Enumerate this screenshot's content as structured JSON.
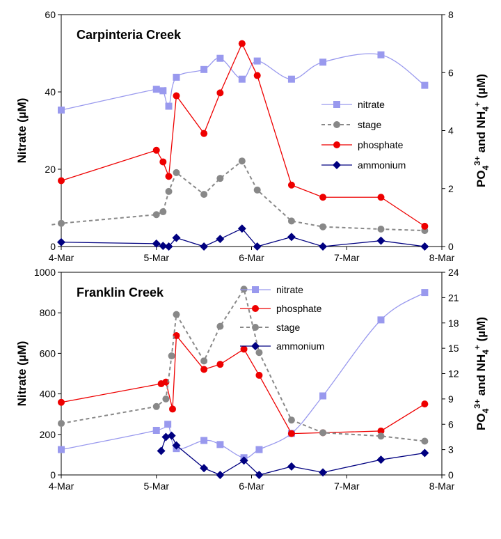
{
  "chart_data": [
    {
      "type": "line",
      "title": "Carpinteria Creek",
      "xlabel": "",
      "ylabel": "Nitrate (µM)",
      "y2label": {
        "prefix": "PO",
        "sub1": "4",
        "sup1": "3+",
        "mid": " and NH",
        "sub2": "4",
        "sup2": "+",
        "suffix": " (µM)"
      },
      "xlim": [
        0,
        4
      ],
      "ylim": [
        0,
        60
      ],
      "y2lim": [
        0,
        8
      ],
      "x_ticks": [
        0,
        1,
        2,
        3,
        4
      ],
      "x_tick_labels": [
        "4-Mar",
        "5-Mar",
        "6-Mar",
        "7-Mar",
        "8-Mar"
      ],
      "y_ticks": [
        0,
        20,
        40,
        60
      ],
      "y_tick_labels": [
        "0",
        "20",
        "40",
        "60"
      ],
      "y2_ticks": [
        0,
        2,
        4,
        6,
        8
      ],
      "y2_tick_labels": [
        "0",
        "2",
        "4",
        "6",
        "8"
      ],
      "legend_position": "center-right",
      "legend": [
        "nitrate",
        "stage",
        "phosphate",
        "ammonium"
      ],
      "series": [
        {
          "name": "nitrate",
          "axis": "left",
          "color": "#9999ee",
          "marker": "square",
          "line": "smooth",
          "x": [
            0,
            1.0,
            1.07,
            1.13,
            1.21,
            1.5,
            1.67,
            1.9,
            2.06,
            2.42,
            2.75,
            3.36,
            3.82
          ],
          "y": [
            35.3,
            40.7,
            40.3,
            36.3,
            43.8,
            45.8,
            48.7,
            43.3,
            48.0,
            43.3,
            47.7,
            49.6,
            41.7
          ]
        },
        {
          "name": "stage",
          "axis": "right",
          "color": "#888888",
          "marker": "circle",
          "line": "dashed",
          "x": [
            -0.1,
            0,
            1.0,
            1.07,
            1.13,
            1.21,
            1.5,
            1.67,
            1.9,
            2.06,
            2.42,
            2.75,
            3.36,
            3.82
          ],
          "y": [
            0.75,
            0.8,
            1.1,
            1.2,
            1.9,
            2.55,
            1.8,
            2.35,
            2.95,
            1.95,
            0.88,
            0.68,
            0.6,
            0.55
          ]
        },
        {
          "name": "phosphate",
          "axis": "right",
          "color": "#ee0000",
          "marker": "circle",
          "line": "solid",
          "x": [
            0,
            1.0,
            1.07,
            1.13,
            1.21,
            1.5,
            1.67,
            1.9,
            2.06,
            2.42,
            2.75,
            3.36,
            3.82
          ],
          "y": [
            2.27,
            3.32,
            2.92,
            2.42,
            5.2,
            3.9,
            5.3,
            7.0,
            5.9,
            2.12,
            1.7,
            1.7,
            0.7
          ]
        },
        {
          "name": "ammonium",
          "axis": "right",
          "color": "#000080",
          "marker": "diamond",
          "line": "solid",
          "x": [
            0,
            1.0,
            1.07,
            1.13,
            1.21,
            1.5,
            1.67,
            1.9,
            2.06,
            2.42,
            2.75,
            3.36,
            3.82
          ],
          "y": [
            0.15,
            0.1,
            0.02,
            0.0,
            0.3,
            0.0,
            0.26,
            0.62,
            0.0,
            0.33,
            0.0,
            0.2,
            0.0
          ]
        }
      ]
    },
    {
      "type": "line",
      "title": "Franklin Creek",
      "xlabel": "",
      "ylabel": "Nitrate (µM)",
      "y2label": {
        "prefix": "PO",
        "sub1": "4",
        "sup1": "3+",
        "mid": " and NH",
        "sub2": "4",
        "sup2": "+",
        "suffix": " (µM)"
      },
      "xlim": [
        0,
        4
      ],
      "ylim": [
        0,
        1000
      ],
      "y2lim": [
        0,
        24
      ],
      "x_ticks": [
        0,
        1,
        2,
        3,
        4
      ],
      "x_tick_labels": [
        "4-Mar",
        "5-Mar",
        "6-Mar",
        "7-Mar",
        "8-Mar"
      ],
      "y_ticks": [
        0,
        200,
        400,
        600,
        800,
        1000
      ],
      "y_tick_labels": [
        "0",
        "200",
        "400",
        "600",
        "800",
        "1000"
      ],
      "y2_ticks": [
        0,
        3,
        6,
        9,
        12,
        15,
        18,
        21,
        24
      ],
      "y2_tick_labels": [
        "0",
        "3",
        "6",
        "9",
        "12",
        "15",
        "18",
        "21",
        "24"
      ],
      "legend_position": "top-center",
      "legend": [
        "nitrate",
        "phosphate",
        "stage",
        "ammonium"
      ],
      "series": [
        {
          "name": "nitrate",
          "axis": "left",
          "color": "#9999ee",
          "marker": "square",
          "line": "smooth",
          "x": [
            0,
            1.0,
            1.12,
            1.21,
            1.5,
            1.67,
            1.92,
            2.08,
            2.42,
            2.75,
            3.36,
            3.82
          ],
          "y": [
            125,
            220,
            250,
            130,
            170,
            150,
            85,
            125,
            205,
            390,
            765,
            900
          ]
        },
        {
          "name": "phosphate",
          "axis": "right",
          "color": "#ee0000",
          "marker": "circle",
          "line": "solid",
          "x": [
            0,
            1.05,
            1.1,
            1.17,
            1.21,
            1.5,
            1.67,
            1.92,
            2.08,
            2.42,
            2.75,
            3.36,
            3.82
          ],
          "y": [
            8.6,
            10.8,
            11.0,
            7.8,
            16.5,
            12.5,
            13.1,
            14.9,
            11.8,
            4.9,
            5.0,
            5.2,
            8.4
          ]
        },
        {
          "name": "stage",
          "axis": "right",
          "color": "#888888",
          "marker": "circle",
          "line": "dashed",
          "x": [
            0,
            1.0,
            1.1,
            1.16,
            1.21,
            1.5,
            1.67,
            1.92,
            2.08,
            2.42,
            2.75,
            3.36,
            3.82
          ],
          "y": [
            6.1,
            8.1,
            9.0,
            14.1,
            19.0,
            13.5,
            17.6,
            22.0,
            14.5,
            6.5,
            5.0,
            4.6,
            4.0
          ]
        },
        {
          "name": "ammonium",
          "axis": "right",
          "color": "#000080",
          "marker": "diamond",
          "line": "solid",
          "x": [
            1.05,
            1.1,
            1.16,
            1.21,
            1.5,
            1.67,
            1.92,
            2.08,
            2.42,
            2.75,
            3.36,
            3.82
          ],
          "y": [
            2.85,
            4.5,
            4.65,
            3.5,
            0.8,
            0.0,
            1.7,
            0.0,
            1.0,
            0.3,
            1.8,
            2.6
          ]
        }
      ]
    }
  ]
}
